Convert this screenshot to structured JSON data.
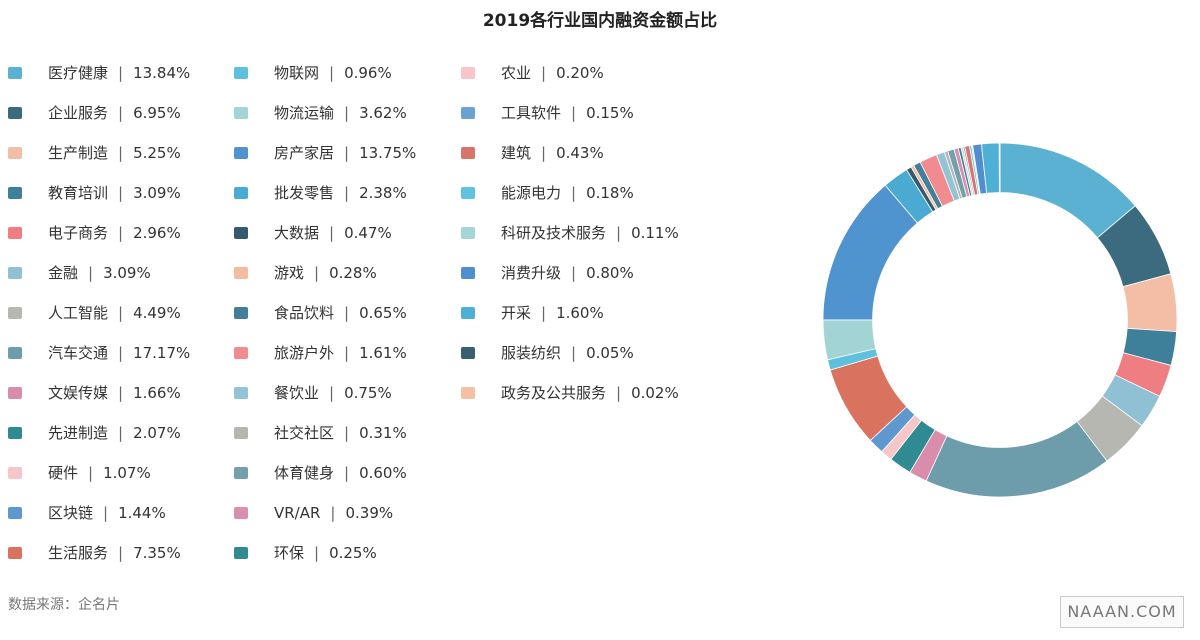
{
  "chart_data": {
    "type": "pie",
    "title": "2019各行业国内融资金额占比",
    "unit": "%",
    "slices": [
      {
        "name": "医疗健康",
        "value": 13.84,
        "label": "13.84%",
        "color": "#5ab1d2"
      },
      {
        "name": "企业服务",
        "value": 6.95,
        "label": "6.95%",
        "color": "#3c6a7f"
      },
      {
        "name": "生产制造",
        "value": 5.25,
        "label": "5.25%",
        "color": "#f3bda6"
      },
      {
        "name": "教育培训",
        "value": 3.09,
        "label": "3.09%",
        "color": "#3e7f99"
      },
      {
        "name": "电子商务",
        "value": 2.96,
        "label": "2.96%",
        "color": "#ef7e82"
      },
      {
        "name": "金融",
        "value": 3.09,
        "label": "3.09%",
        "color": "#8fc0d4"
      },
      {
        "name": "人工智能",
        "value": 4.49,
        "label": "4.49%",
        "color": "#b6b7b0"
      },
      {
        "name": "汽车交通",
        "value": 17.17,
        "label": "17.17%",
        "color": "#6d9dab"
      },
      {
        "name": "文娱传媒",
        "value": 1.66,
        "label": "1.66%",
        "color": "#d98cab"
      },
      {
        "name": "先进制造",
        "value": 2.07,
        "label": "2.07%",
        "color": "#2f8a91"
      },
      {
        "name": "硬件",
        "value": 1.07,
        "label": "1.07%",
        "color": "#f6c6c9"
      },
      {
        "name": "区块链",
        "value": 1.44,
        "label": "1.44%",
        "color": "#5e98cf"
      },
      {
        "name": "生活服务",
        "value": 7.35,
        "label": "7.35%",
        "color": "#d9735f"
      },
      {
        "name": "物联网",
        "value": 0.96,
        "label": "0.96%",
        "color": "#5fc0dd"
      },
      {
        "name": "物流运输",
        "value": 3.62,
        "label": "3.62%",
        "color": "#a2d4d6"
      },
      {
        "name": "房产家居",
        "value": 13.75,
        "label": "13.75%",
        "color": "#4f93cf"
      },
      {
        "name": "批发零售",
        "value": 2.38,
        "label": "2.38%",
        "color": "#4aaad1"
      },
      {
        "name": "大数据",
        "value": 0.47,
        "label": "0.47%",
        "color": "#355a6e"
      },
      {
        "name": "游戏",
        "value": 0.28,
        "label": "0.28%",
        "color": "#f4bc9e"
      },
      {
        "name": "食品饮料",
        "value": 0.65,
        "label": "0.65%",
        "color": "#437f99"
      },
      {
        "name": "旅游户外",
        "value": 1.61,
        "label": "1.61%",
        "color": "#f08c90"
      },
      {
        "name": "餐饮业",
        "value": 0.75,
        "label": "0.75%",
        "color": "#94c3d6"
      },
      {
        "name": "社交社区",
        "value": 0.31,
        "label": "0.31%",
        "color": "#b5b6b0"
      },
      {
        "name": "体育健身",
        "value": 0.6,
        "label": "0.60%",
        "color": "#74a0ac"
      },
      {
        "name": "VR/AR",
        "value": 0.39,
        "label": "0.39%",
        "color": "#db8fae"
      },
      {
        "name": "环保",
        "value": 0.25,
        "label": "0.25%",
        "color": "#2f8a91"
      },
      {
        "name": "农业",
        "value": 0.2,
        "label": "0.20%",
        "color": "#f6c6c9"
      },
      {
        "name": "工具软件",
        "value": 0.15,
        "label": "0.15%",
        "color": "#6aa3d2"
      },
      {
        "name": "建筑",
        "value": 0.43,
        "label": "0.43%",
        "color": "#d8746a"
      },
      {
        "name": "能源电力",
        "value": 0.18,
        "label": "0.18%",
        "color": "#5fc3df"
      },
      {
        "name": "科研及技术服务",
        "value": 0.11,
        "label": "0.11%",
        "color": "#a6d5d6"
      },
      {
        "name": "消费升级",
        "value": 0.8,
        "label": "0.80%",
        "color": "#4f8fcf"
      },
      {
        "name": "开采",
        "value": 1.6,
        "label": "1.60%",
        "color": "#4fb0d6"
      },
      {
        "name": "服装纺织",
        "value": 0.05,
        "label": "0.05%",
        "color": "#385f70"
      },
      {
        "name": "政务及公共服务",
        "value": 0.02,
        "label": "0.02%",
        "color": "#f4bfa2"
      }
    ],
    "legend_placement": "left",
    "legend_columns": 3,
    "legend_rows": 13,
    "inner_radius_ratio": 0.72
  },
  "footer": {
    "source": "数据来源：企名片",
    "watermark": "NAAAN.COM"
  }
}
